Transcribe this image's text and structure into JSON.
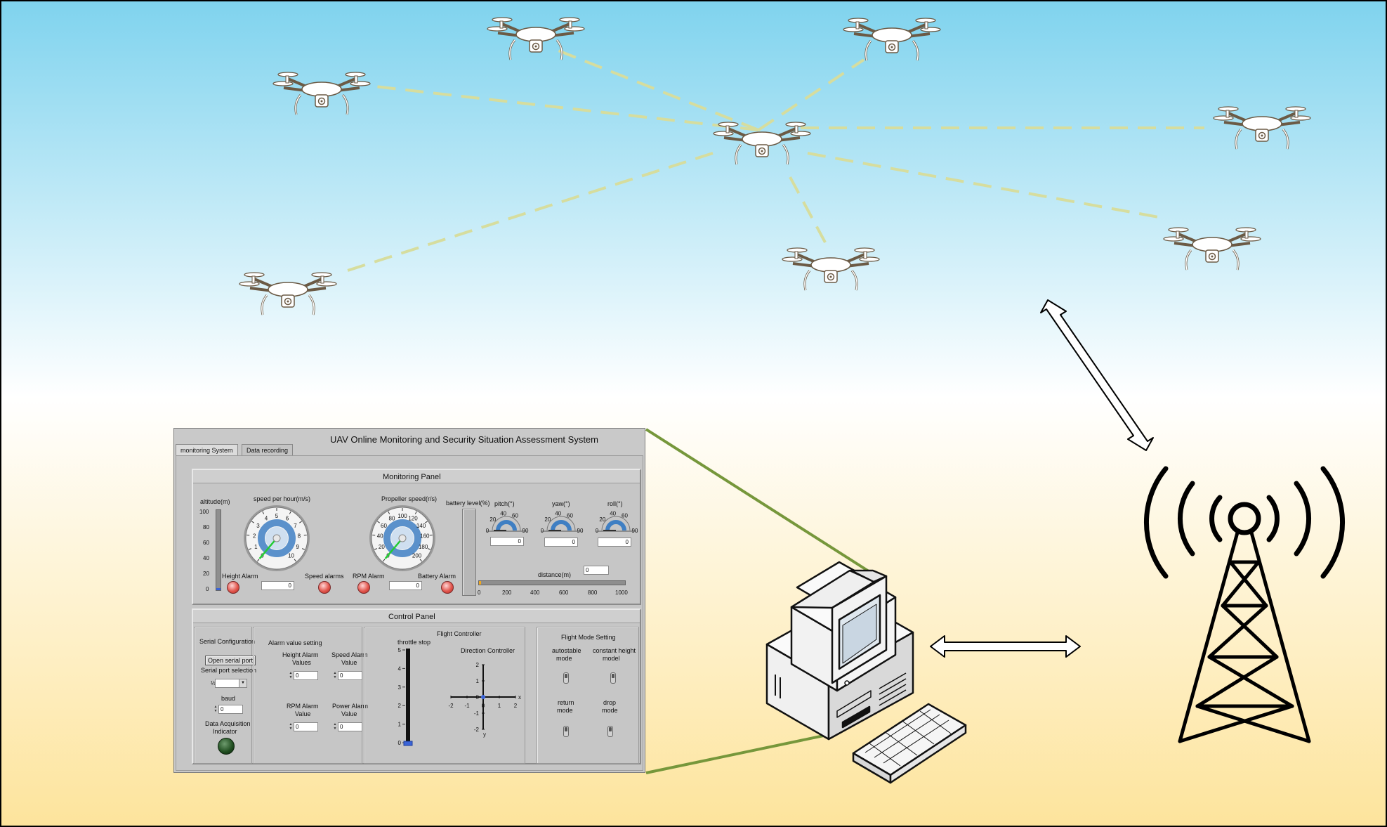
{
  "panel": {
    "title": "UAV Online Monitoring and Security Situation Assessment System",
    "tabs": [
      "monitoring System",
      "Data recording"
    ],
    "monitoring_panel": {
      "title": "Monitoring Panel",
      "altitude": {
        "label": "altitude(m)",
        "ticks": [
          "100",
          "80",
          "60",
          "40",
          "20",
          "0"
        ],
        "value": 0
      },
      "speed_gauge": {
        "label": "speed per hour(m/s)",
        "ticks": [
          "0",
          "1",
          "2",
          "3",
          "4",
          "5",
          "6",
          "7",
          "8",
          "9",
          "10"
        ],
        "value": 0
      },
      "propeller_gauge": {
        "label": "Propeller speed(r/s)",
        "ticks": [
          "0",
          "20",
          "40",
          "60",
          "80",
          "100",
          "120",
          "140",
          "160",
          "180",
          "200"
        ],
        "value": 0
      },
      "battery_label": "battery level(%)",
      "battery_value": 0,
      "pitch": {
        "label": "pitch(°)",
        "ticks": [
          "0",
          "20",
          "40",
          "60",
          "90"
        ],
        "value": "0"
      },
      "yaw": {
        "label": "yaw(°)",
        "ticks": [
          "0",
          "20",
          "40",
          "60",
          "90"
        ],
        "value": "0"
      },
      "roll": {
        "label": "roll(°)",
        "ticks": [
          "0",
          "20",
          "40",
          "60",
          "90"
        ],
        "value": "0"
      },
      "height_alarm": "Height Alarm",
      "speed_alarm": "Speed alarms",
      "rpm_alarm": "RPM Alarm",
      "battery_alarm": "Battery Alarm",
      "height_value": "0",
      "rpm_value": "0",
      "distance_label": "distance(m)",
      "distance_value": "0",
      "distance_ticks": [
        "0",
        "200",
        "400",
        "600",
        "800",
        "1000"
      ]
    },
    "control_panel": {
      "title": "Control Panel",
      "serial": {
        "title": "Serial Configuration",
        "open_button": "Open serial port",
        "port_label": "Serial port selection",
        "port_prefix": "⅓",
        "baud_label": "baud",
        "baud_value": "0",
        "daq_label_1": "Data Acquisition",
        "daq_label_2": "Indicator"
      },
      "alarm": {
        "title": "Alarm value setting",
        "height_label_1": "Height Alarm",
        "height_label_2": "Values",
        "height_value": "0",
        "speed_label_1": "Speed Alarm",
        "speed_label_2": "Value",
        "speed_value": "0",
        "rpm_label_1": "RPM Alarm",
        "rpm_label_2": "Value",
        "rpm_value": "0",
        "power_label_1": "Power Alarm",
        "power_label_2": "Value",
        "power_value": "0"
      },
      "flight": {
        "title": "Flight Controller",
        "throttle_label": "throttle stop",
        "throttle_ticks": [
          "5",
          "4",
          "3",
          "2",
          "1",
          "0"
        ],
        "throttle_value": 0,
        "direction_label": "Direction Controller",
        "x_ticks": [
          "-2",
          "-1",
          "0",
          "1",
          "2"
        ],
        "y_ticks": [
          "2",
          "1",
          "0",
          "-1",
          "-2"
        ],
        "x_axis": "x",
        "y_axis": "y"
      },
      "mode": {
        "title": "Flight Mode Setting",
        "autostable_1": "autostable",
        "autostable_2": "mode",
        "height_1": "constant height",
        "height_2": "model",
        "return_1": "return",
        "return_2": "mode",
        "drop_1": "drop",
        "drop_2": "mode"
      }
    }
  },
  "colors": {
    "sky_top": "#7fd3ee",
    "ground_bottom": "#fde49c",
    "panel_bg": "#c9c9c9",
    "link_line": "#d6dd9e",
    "callout_line": "#76973b",
    "gauge_needle": "#22cc33",
    "gauge_arc": "#3f7fc3",
    "led_red": "#e2574e",
    "led_green": "#1f4d1f"
  },
  "icons": [
    "quadcopter-drone-icon",
    "desktop-computer-icon",
    "keyboard-icon",
    "radio-tower-icon",
    "double-arrow-icon"
  ]
}
